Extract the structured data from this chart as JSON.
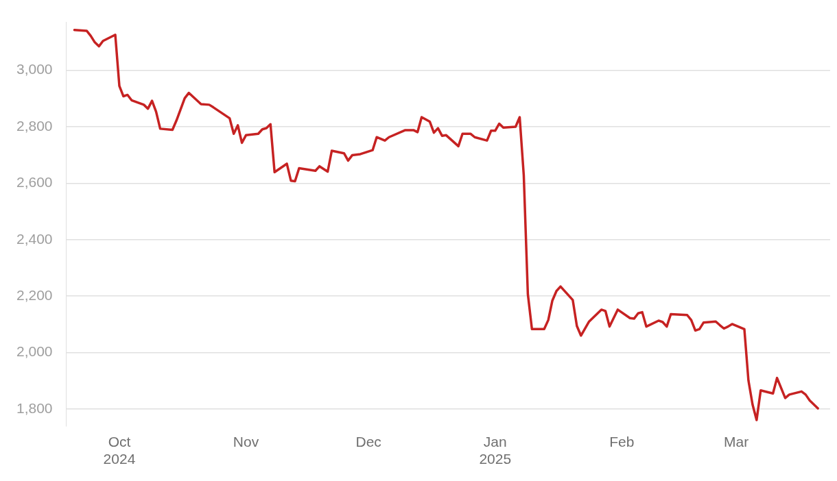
{
  "chart_data": {
    "type": "line",
    "color": "#c62222",
    "grid": "y",
    "marker": "none",
    "line_style": "solid",
    "x": [
      "2024-09-20",
      "2024-09-23",
      "2024-09-24",
      "2024-09-25",
      "2024-09-26",
      "2024-09-27",
      "2024-09-30",
      "2024-10-01",
      "2024-10-02",
      "2024-10-03",
      "2024-10-04",
      "2024-10-07",
      "2024-10-08",
      "2024-10-09",
      "2024-10-10",
      "2024-10-11",
      "2024-10-14",
      "2024-10-15",
      "2024-10-17",
      "2024-10-18",
      "2024-10-21",
      "2024-10-23",
      "2024-10-24",
      "2024-10-28",
      "2024-10-29",
      "2024-10-30",
      "2024-10-31",
      "2024-11-01",
      "2024-11-04",
      "2024-11-05",
      "2024-11-06",
      "2024-11-07",
      "2024-11-08",
      "2024-11-11",
      "2024-11-12",
      "2024-11-13",
      "2024-11-14",
      "2024-11-18",
      "2024-11-19",
      "2024-11-21",
      "2024-11-22",
      "2024-11-25",
      "2024-11-26",
      "2024-11-27",
      "2024-11-29",
      "2024-12-02",
      "2024-12-03",
      "2024-12-05",
      "2024-12-06",
      "2024-12-10",
      "2024-12-12",
      "2024-12-13",
      "2024-12-14",
      "2024-12-16",
      "2024-12-17",
      "2024-12-18",
      "2024-12-19",
      "2024-12-20",
      "2024-12-23",
      "2024-12-24",
      "2024-12-26",
      "2024-12-27",
      "2024-12-30",
      "2024-12-31",
      "2025-01-01",
      "2025-01-02",
      "2025-01-03",
      "2025-01-06",
      "2025-01-07",
      "2025-01-08",
      "2025-01-09",
      "2025-01-10",
      "2025-01-13",
      "2025-01-14",
      "2025-01-15",
      "2025-01-16",
      "2025-01-17",
      "2025-01-20",
      "2025-01-21",
      "2025-01-22",
      "2025-01-24",
      "2025-01-27",
      "2025-01-28",
      "2025-01-29",
      "2025-01-31",
      "2025-02-03",
      "2025-02-04",
      "2025-02-05",
      "2025-02-06",
      "2025-02-07",
      "2025-02-10",
      "2025-02-11",
      "2025-02-12",
      "2025-02-13",
      "2025-02-17",
      "2025-02-18",
      "2025-02-19",
      "2025-02-20",
      "2025-02-21",
      "2025-02-24",
      "2025-02-25",
      "2025-02-26",
      "2025-02-27",
      "2025-02-28",
      "2025-03-03",
      "2025-03-04",
      "2025-03-05",
      "2025-03-06",
      "2025-03-07",
      "2025-03-10",
      "2025-03-11",
      "2025-03-13",
      "2025-03-14",
      "2025-03-17",
      "2025-03-18",
      "2025-03-19",
      "2025-03-21"
    ],
    "values": [
      3143,
      3140,
      3122,
      3099,
      3085,
      3104,
      3126,
      2945,
      2908,
      2913,
      2894,
      2878,
      2864,
      2892,
      2853,
      2793,
      2789,
      2823,
      2901,
      2920,
      2880,
      2878,
      2869,
      2830,
      2775,
      2805,
      2743,
      2770,
      2775,
      2791,
      2795,
      2809,
      2639,
      2669,
      2609,
      2607,
      2653,
      2644,
      2660,
      2641,
      2715,
      2706,
      2680,
      2699,
      2703,
      2717,
      2763,
      2751,
      2763,
      2788,
      2788,
      2781,
      2834,
      2818,
      2779,
      2795,
      2768,
      2770,
      2731,
      2775,
      2775,
      2763,
      2751,
      2786,
      2786,
      2811,
      2797,
      2800,
      2834,
      2628,
      2207,
      2083,
      2083,
      2115,
      2184,
      2218,
      2234,
      2186,
      2094,
      2060,
      2110,
      2152,
      2147,
      2092,
      2152,
      2122,
      2120,
      2139,
      2143,
      2092,
      2113,
      2108,
      2092,
      2136,
      2133,
      2115,
      2078,
      2083,
      2106,
      2110,
      2097,
      2085,
      2092,
      2101,
      2083,
      1901,
      1816,
      1761,
      1866,
      1855,
      1910,
      1839,
      1851,
      1862,
      1851,
      1830,
      1802
    ],
    "xlim": [
      "2024-09-18",
      "2025-03-24"
    ],
    "xticks": [
      {
        "value": "2024-10-01",
        "label": "Oct\n2024"
      },
      {
        "value": "2024-11-01",
        "label": "Nov"
      },
      {
        "value": "2024-12-01",
        "label": "Dec"
      },
      {
        "value": "2025-01-01",
        "label": "Jan\n2025"
      },
      {
        "value": "2025-02-01",
        "label": "Feb"
      },
      {
        "value": "2025-03-01",
        "label": "Mar"
      }
    ],
    "ylim": [
      1740,
      3170
    ],
    "yticks": [
      {
        "value": 1800,
        "label": "1,800"
      },
      {
        "value": 2000,
        "label": "2,000"
      },
      {
        "value": 2200,
        "label": "2,200"
      },
      {
        "value": 2400,
        "label": "2,400"
      },
      {
        "value": 2600,
        "label": "2,600"
      },
      {
        "value": 2800,
        "label": "2,800"
      },
      {
        "value": 3000,
        "label": "3,000"
      }
    ]
  }
}
